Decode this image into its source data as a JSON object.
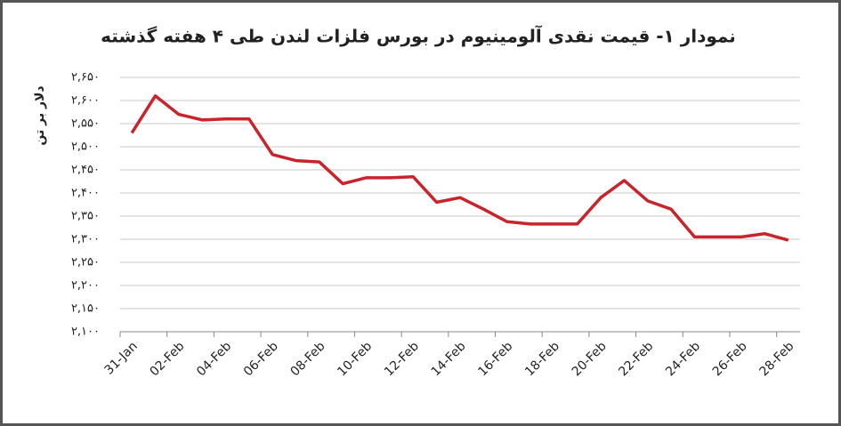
{
  "chart_data": {
    "type": "line",
    "title": "نمودار ۱- قیمت نقدی آلومینیوم در بورس فلزات لندن طی ۴ هفته گذشته",
    "y_label": "دلار بر تن",
    "categories": [
      "31-Jan",
      null,
      "02-Feb",
      null,
      "04-Feb",
      null,
      "06-Feb",
      null,
      "08-Feb",
      null,
      "10-Feb",
      null,
      "12-Feb",
      null,
      "14-Feb",
      null,
      "16-Feb",
      null,
      "18-Feb",
      null,
      "20-Feb",
      null,
      "22-Feb",
      null,
      "24-Feb",
      null,
      "26-Feb",
      null,
      "28-Feb"
    ],
    "series": [
      {
        "color": "#c8242b",
        "values": [
          2530,
          2610,
          2570,
          2558,
          2560,
          2560,
          2483,
          2470,
          2467,
          2420,
          2433,
          2433,
          2435,
          2380,
          2390,
          2365,
          2338,
          2333,
          2333,
          2333,
          2390,
          2427,
          2383,
          2365,
          2305,
          2305,
          2305,
          2312,
          2298
        ]
      }
    ],
    "ylim": [
      2100,
      2650
    ],
    "yticks": [
      {
        "value": 2100,
        "label": "۲,۱۰۰"
      },
      {
        "value": 2150,
        "label": "۲,۱۵۰"
      },
      {
        "value": 2200,
        "label": "۲,۲۰۰"
      },
      {
        "value": 2250,
        "label": "۲,۲۵۰"
      },
      {
        "value": 2300,
        "label": "۲,۳۰۰"
      },
      {
        "value": 2350,
        "label": "۲,۳۵۰"
      },
      {
        "value": 2400,
        "label": "۲,۴۰۰"
      },
      {
        "value": 2450,
        "label": "۲,۴۵۰"
      },
      {
        "value": 2500,
        "label": "۲,۵۰۰"
      },
      {
        "value": 2550,
        "label": "۲,۵۵۰"
      },
      {
        "value": 2600,
        "label": "۲,۶۰۰"
      },
      {
        "value": 2650,
        "label": "۲,۶۵۰"
      }
    ],
    "grid": true
  }
}
